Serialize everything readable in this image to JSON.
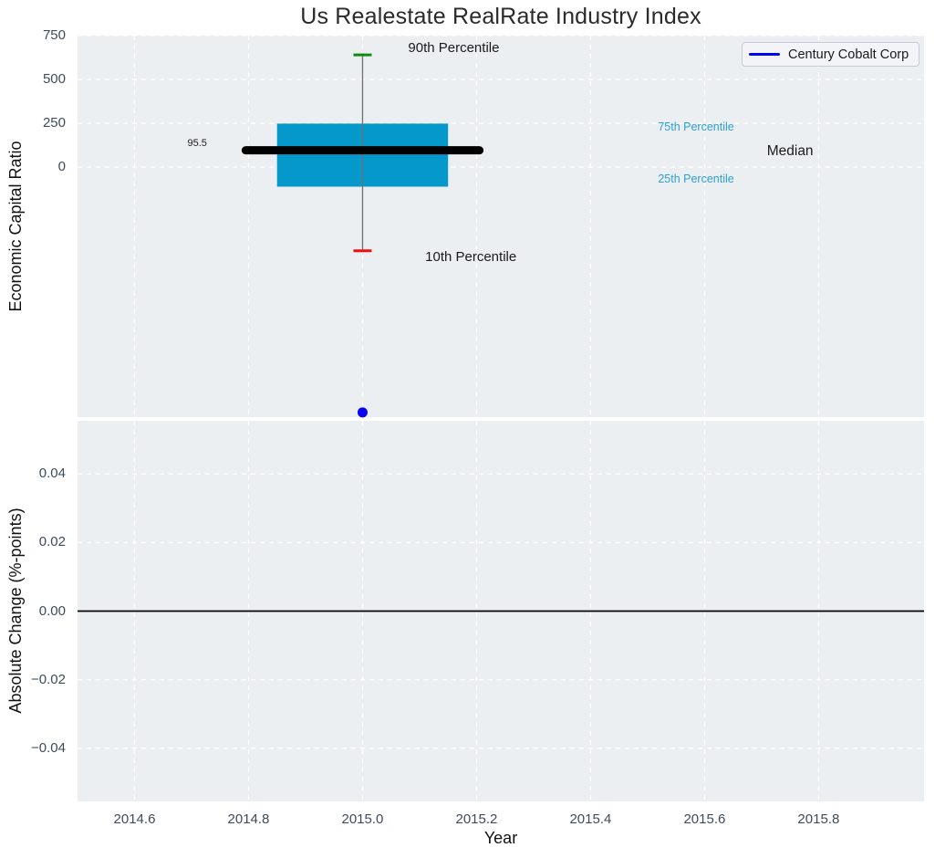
{
  "title": "Us Realestate RealRate Industry Index",
  "legend": {
    "label": "Century Cobalt Corp"
  },
  "colors": {
    "figure_bg": "#ffffff",
    "panel_bg": "#eceff1",
    "grid": "#ffffff",
    "box_fill": "#0598cb",
    "median_line": "#000000",
    "whisker": "#6f6f6f",
    "cap_90": "#108a10",
    "cap_10": "#ee1010",
    "company_dot": "#0a02ee",
    "legend_line": "#0202ee",
    "zero_line": "#000000",
    "tick_label": "#3d4c5c",
    "title_text": "#2b2b2b",
    "axis_label": "#111111",
    "pct_label_blue": "#2da0d2",
    "annotation_dark": "#1a1a1a"
  },
  "chart_data": [
    {
      "type": "boxplot",
      "panel": "top",
      "title": "Us Realestate RealRate Industry Index",
      "ylabel": "Economic Capital Ratio",
      "xlim": [
        2014.5,
        2015.985
      ],
      "ylim": [
        -1427,
        750
      ],
      "grid": true,
      "legend_position": "upper right",
      "ytick_values": [
        750,
        500,
        250,
        0
      ],
      "ytick_labels": [
        "750",
        "500",
        "250",
        "0"
      ],
      "xtick_values": [
        2014.6,
        2014.8,
        2015.0,
        2015.2,
        2015.4,
        2015.6,
        2015.8
      ],
      "box": {
        "x": 2015.0,
        "p90": 640,
        "p75": 248,
        "median": 95.5,
        "p25": -112,
        "p10": -478,
        "box_halfwidth": 0.15,
        "median_halfwidth": 0.205,
        "cap_halfwidth": 0.016
      },
      "company_point": {
        "series": "Century Cobalt Corp",
        "x": 2015.0,
        "y": -1400
      },
      "annotations": [
        {
          "text": "90th Percentile",
          "x": 2015.16,
          "y": 672,
          "color": "dark",
          "size": 15
        },
        {
          "text": "10th Percentile",
          "x": 2015.19,
          "y": -521,
          "color": "dark",
          "size": 15
        },
        {
          "text": "75th Percentile",
          "x": 2015.585,
          "y": 224,
          "color": "blue",
          "size": 12.5
        },
        {
          "text": "25th Percentile",
          "x": 2015.585,
          "y": -73,
          "color": "blue",
          "size": 12.5
        },
        {
          "text": "Median",
          "x": 2015.75,
          "y": 83,
          "color": "dark",
          "size": 15.5
        },
        {
          "text": "95.5",
          "x": 2014.71,
          "y": 128,
          "color": "dark",
          "size": 11
        }
      ]
    },
    {
      "type": "line",
      "panel": "bottom",
      "ylabel": "Absolute Change (%-points)",
      "xlabel": "Year",
      "xlim": [
        2014.5,
        2015.985
      ],
      "ylim": [
        -0.0555,
        0.0555
      ],
      "grid": true,
      "zero_line_y": 0.0,
      "ytick_values": [
        0.04,
        0.02,
        0.0,
        -0.02,
        -0.04
      ],
      "ytick_labels": [
        "0.04",
        "0.02",
        "0.00",
        "−0.02",
        "−0.04"
      ],
      "xtick_values": [
        2014.6,
        2014.8,
        2015.0,
        2015.2,
        2015.4,
        2015.6,
        2015.8
      ],
      "xtick_labels": [
        "2014.6",
        "2014.8",
        "2015.0",
        "2015.2",
        "2015.4",
        "2015.6",
        "2015.8"
      ],
      "series": []
    }
  ]
}
